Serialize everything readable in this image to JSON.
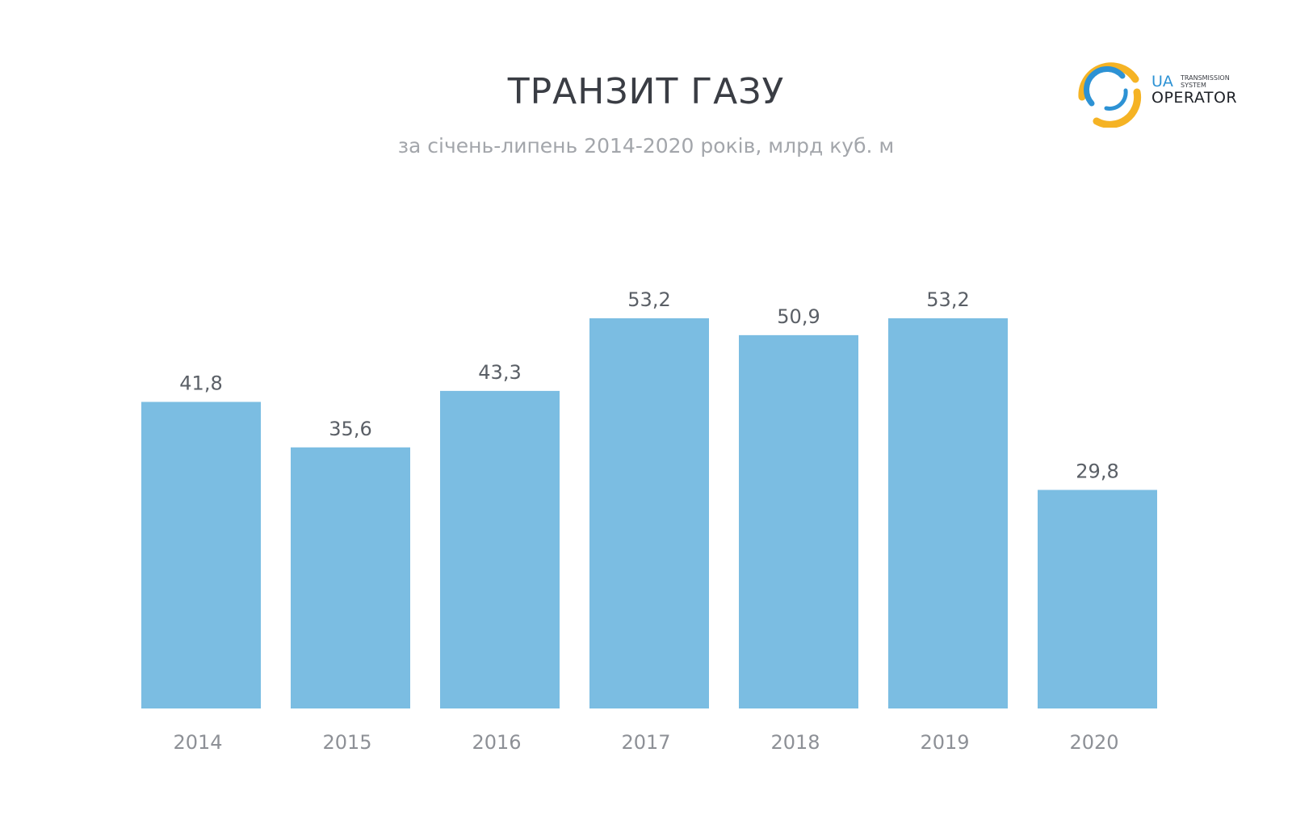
{
  "header": {
    "title": "ТРАНЗИТ ГАЗУ",
    "subtitle": "за січень-липень 2014-2020 років, млрд куб. м"
  },
  "logo": {
    "ua": "UA",
    "line1": "TRANSMISSION",
    "line2": "SYSTEM",
    "operator": "OPERATOR",
    "colors": {
      "yellow": "#f5b324",
      "blue": "#2d92d4",
      "dark": "#1e2127"
    }
  },
  "chart_data": {
    "type": "bar",
    "title": "ТРАНЗИТ ГАЗУ",
    "subtitle": "за січень-липень 2014-2020 років, млрд куб. м",
    "categories": [
      "2014",
      "2015",
      "2016",
      "2017",
      "2018",
      "2019",
      "2020"
    ],
    "values": [
      41.8,
      35.6,
      43.3,
      53.2,
      50.9,
      53.2,
      29.8
    ],
    "value_labels": [
      "41,8",
      "35,6",
      "43,3",
      "53,2",
      "50,9",
      "53,2",
      "29,8"
    ],
    "ylim": [
      0,
      53.2
    ],
    "grid": false,
    "legend": "none",
    "bar_color": "#7bbde2"
  }
}
